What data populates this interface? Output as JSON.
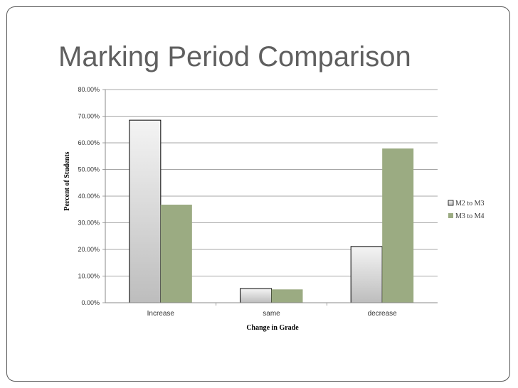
{
  "slide": {
    "title": "Marking Period Comparison"
  },
  "chart_data": {
    "type": "bar",
    "categories": [
      "Increase",
      "same",
      "decrease"
    ],
    "series": [
      {
        "name": "M2 to M3",
        "values": [
          68.5,
          5.3,
          21.1
        ]
      },
      {
        "name": "M3 to M4",
        "values": [
          36.8,
          5.0,
          57.9
        ]
      }
    ],
    "xlabel": "Change in Grade",
    "ylabel": "Percent of Students",
    "ylim": [
      0,
      80
    ],
    "y_ticks": [
      "0.00%",
      "10.00%",
      "20.00%",
      "30.00%",
      "40.00%",
      "50.00%",
      "60.00%",
      "70.00%",
      "80.00%"
    ],
    "grid": true,
    "legend": "right",
    "colors": {
      "series_0_fill_light": "#f4f4f4",
      "series_0_fill_dark": "#bdbdbd",
      "series_1_fill": "#9bab82",
      "axis": "#888888",
      "text": "#333333"
    }
  }
}
